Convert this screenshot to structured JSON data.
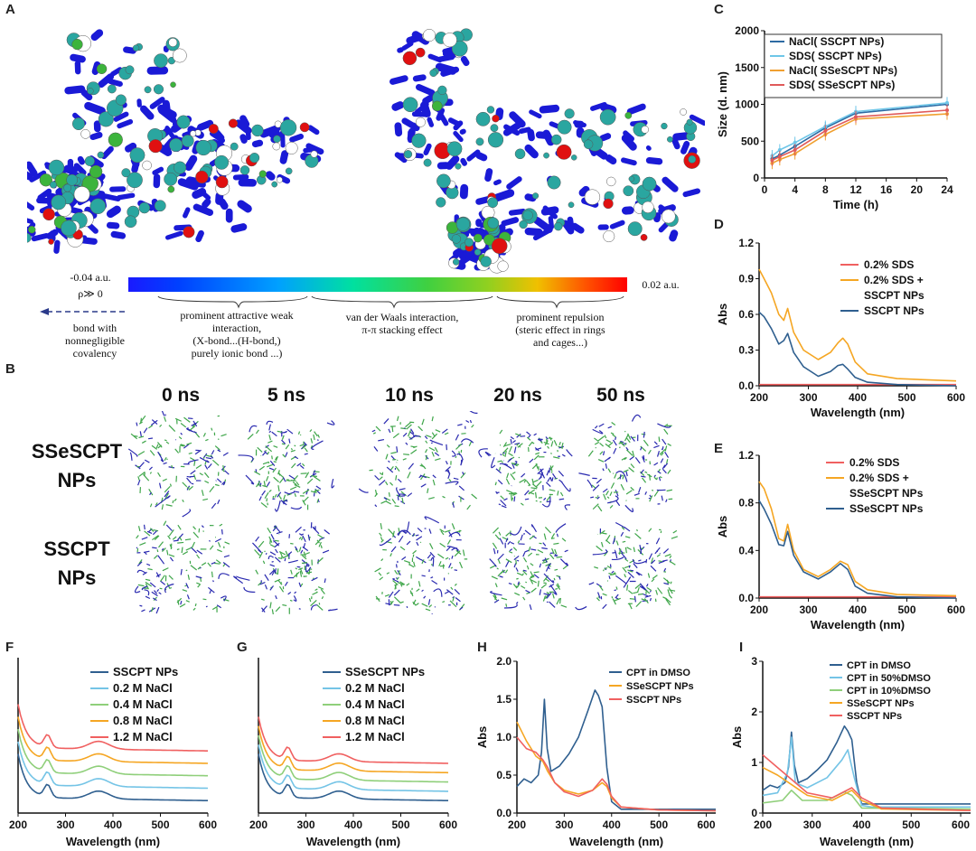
{
  "panels": {
    "A": "A",
    "B": "B",
    "C": "C",
    "D": "D",
    "E": "E",
    "F": "F",
    "G": "G",
    "H": "H",
    "I": "I"
  },
  "panel_a": {
    "colorbar_min": "-0.04 a.u.",
    "colorbar_rho": "ρ≫ 0",
    "colorbar_max": "0.02 a.u.",
    "bond_text": [
      "bond with",
      "nonnegligible",
      "covalency"
    ],
    "region1": [
      "prominent attractive weak",
      "interaction,",
      "(X-bond...(H-bond,)",
      "purely ionic bond ...)"
    ],
    "region2": [
      "van der Waals interaction,",
      "π-π stacking effect"
    ],
    "region3": [
      "prominent repulsion",
      "(steric effect in rings",
      "and cages...)"
    ],
    "colors": {
      "blue": "#1a1ad6",
      "cyan": "#2aa6a0",
      "green": "#3cb43c",
      "red": "#e01010"
    }
  },
  "panel_b": {
    "times": [
      "0 ns",
      "5 ns",
      "10 ns",
      "20 ns",
      "50 ns"
    ],
    "rows": [
      {
        "line1": "SSeSCPT",
        "line2": "NPs"
      },
      {
        "line1": "SSCPT",
        "line2": "NPs"
      }
    ]
  },
  "chart_data": [
    {
      "id": "C",
      "type": "line",
      "xlabel": "Time (h)",
      "ylabel": "Size (d. nm)",
      "xlim": [
        0,
        24
      ],
      "ylim": [
        0,
        2000
      ],
      "xticks": [
        0,
        4,
        8,
        12,
        16,
        20,
        24
      ],
      "yticks": [
        0,
        500,
        1000,
        1500,
        2000
      ],
      "x": [
        1,
        2,
        4,
        8,
        12,
        24
      ],
      "series": [
        {
          "name": "NaCl( SSCPT NPs)",
          "color": "#2d6aa3",
          "values": [
            260,
            310,
            430,
            680,
            880,
            1000
          ]
        },
        {
          "name": "SDS( SSCPT NPs)",
          "color": "#6ec6e8",
          "values": [
            300,
            380,
            480,
            700,
            900,
            1020
          ]
        },
        {
          "name": "NaCl( SSeSCPT NPs)",
          "color": "#f0a030",
          "values": [
            200,
            250,
            330,
            590,
            800,
            870
          ]
        },
        {
          "name": "SDS( SSeSCPT NPs)",
          "color": "#e05a5a",
          "values": [
            240,
            290,
            380,
            640,
            830,
            920
          ]
        }
      ]
    },
    {
      "id": "D",
      "type": "line",
      "xlabel": "Wavelength (nm)",
      "ylabel": "Abs",
      "xlim": [
        200,
        600
      ],
      "ylim": [
        0,
        1.2
      ],
      "xticks": [
        200,
        300,
        400,
        500,
        600
      ],
      "yticks": [
        "0.0",
        "0.3",
        "0.6",
        "0.9",
        "1.2"
      ],
      "series": [
        {
          "name": "0.2% SDS",
          "color": "#f06060",
          "x": [
            200,
            600
          ],
          "values": [
            0.01,
            0.01
          ]
        },
        {
          "name": "0.2% SDS + SSCPT NPs",
          "color": "#f5a623",
          "x": [
            200,
            210,
            225,
            240,
            250,
            258,
            270,
            290,
            320,
            345,
            360,
            370,
            380,
            395,
            420,
            480,
            600
          ],
          "values": [
            0.98,
            0.9,
            0.78,
            0.6,
            0.55,
            0.65,
            0.45,
            0.3,
            0.22,
            0.28,
            0.36,
            0.4,
            0.35,
            0.2,
            0.1,
            0.06,
            0.04
          ]
        },
        {
          "name": "SSCPT NPs",
          "color": "#2f5f8f",
          "x": [
            200,
            210,
            225,
            240,
            250,
            258,
            270,
            290,
            320,
            345,
            360,
            370,
            380,
            395,
            420,
            480,
            600
          ],
          "values": [
            0.62,
            0.58,
            0.48,
            0.35,
            0.38,
            0.44,
            0.28,
            0.16,
            0.08,
            0.12,
            0.17,
            0.18,
            0.14,
            0.07,
            0.03,
            0.01,
            0.0
          ]
        }
      ]
    },
    {
      "id": "E",
      "type": "line",
      "xlabel": "Wavelength (nm)",
      "ylabel": "Abs",
      "xlim": [
        200,
        600
      ],
      "ylim": [
        0,
        1.2
      ],
      "xticks": [
        200,
        300,
        400,
        500,
        600
      ],
      "yticks": [
        "0.0",
        "0.4",
        "0.8",
        "1.2"
      ],
      "series": [
        {
          "name": "0.2% SDS",
          "color": "#f06060",
          "x": [
            200,
            600
          ],
          "values": [
            0.01,
            0.01
          ]
        },
        {
          "name": "0.2% SDS + SSeSCPT NPs",
          "color": "#f5a623",
          "x": [
            200,
            210,
            225,
            240,
            250,
            258,
            270,
            290,
            320,
            345,
            365,
            380,
            395,
            420,
            480,
            600
          ],
          "values": [
            0.98,
            0.92,
            0.75,
            0.5,
            0.48,
            0.62,
            0.4,
            0.24,
            0.18,
            0.24,
            0.31,
            0.28,
            0.14,
            0.07,
            0.03,
            0.02
          ]
        },
        {
          "name": "SSeSCPT NPs",
          "color": "#2f5f8f",
          "x": [
            200,
            210,
            225,
            240,
            250,
            258,
            270,
            290,
            320,
            345,
            365,
            380,
            395,
            420,
            480,
            600
          ],
          "values": [
            0.82,
            0.75,
            0.62,
            0.45,
            0.44,
            0.56,
            0.36,
            0.22,
            0.16,
            0.22,
            0.29,
            0.24,
            0.1,
            0.04,
            0.01,
            0.0
          ]
        }
      ]
    },
    {
      "id": "F",
      "type": "line",
      "xlabel": "Wavelength (nm)",
      "ylabel": "",
      "xlim": [
        200,
        600
      ],
      "ylim": [
        0,
        1
      ],
      "xticks": [
        200,
        300,
        400,
        500,
        600
      ],
      "series": [
        {
          "name": "SSCPT NPs",
          "color": "#2f5f8f",
          "offset": 0.0
        },
        {
          "name": "0.2 M NaCl",
          "color": "#74c4e6",
          "offset": 0.08
        },
        {
          "name": "0.4 M NaCl",
          "color": "#8fcf7a",
          "offset": 0.16
        },
        {
          "name": "0.8 M NaCl",
          "color": "#f5a623",
          "offset": 0.24
        },
        {
          "name": "1.2 M NaCl",
          "color": "#f06060",
          "offset": 0.32
        }
      ]
    },
    {
      "id": "G",
      "type": "line",
      "xlabel": "Wavelength (nm)",
      "ylabel": "",
      "xlim": [
        200,
        600
      ],
      "ylim": [
        0,
        1
      ],
      "xticks": [
        200,
        300,
        400,
        500,
        600
      ],
      "series": [
        {
          "name": "SSeSCPT NPs",
          "color": "#2f5f8f",
          "offset": 0.0
        },
        {
          "name": "0.2 M NaCl",
          "color": "#74c4e6",
          "offset": 0.06
        },
        {
          "name": "0.4 M NaCl",
          "color": "#8fcf7a",
          "offset": 0.12
        },
        {
          "name": "0.8 M NaCl",
          "color": "#f5a623",
          "offset": 0.18
        },
        {
          "name": "1.2 M NaCl",
          "color": "#f06060",
          "offset": 0.24
        }
      ]
    },
    {
      "id": "H",
      "type": "line",
      "xlabel": "Wavelength (nm)",
      "ylabel": "Abs",
      "xlim": [
        200,
        620
      ],
      "ylim": [
        0,
        2.0
      ],
      "xticks": [
        200,
        300,
        400,
        500,
        600
      ],
      "yticks": [
        "0.0",
        "0.5",
        "1.0",
        "1.5",
        "2.0"
      ],
      "series": [
        {
          "name": "CPT in DMSO",
          "color": "#2f5f8f",
          "x": [
            200,
            215,
            230,
            245,
            252,
            258,
            264,
            272,
            290,
            310,
            330,
            350,
            365,
            372,
            380,
            390,
            400,
            420,
            620
          ],
          "values": [
            0.35,
            0.45,
            0.4,
            0.5,
            0.8,
            1.5,
            0.85,
            0.55,
            0.62,
            0.78,
            1.0,
            1.35,
            1.62,
            1.55,
            1.4,
            0.6,
            0.15,
            0.05,
            0.05
          ]
        },
        {
          "name": "SSeSCPT NPs",
          "color": "#f5a623",
          "x": [
            200,
            220,
            240,
            255,
            265,
            280,
            300,
            330,
            360,
            380,
            390,
            400,
            420,
            500,
            620
          ],
          "values": [
            1.2,
            0.95,
            0.75,
            0.68,
            0.55,
            0.4,
            0.3,
            0.25,
            0.3,
            0.4,
            0.35,
            0.2,
            0.08,
            0.04,
            0.03
          ]
        },
        {
          "name": "SSCPT NPs",
          "color": "#f06060",
          "x": [
            200,
            220,
            240,
            255,
            265,
            280,
            300,
            330,
            360,
            380,
            390,
            400,
            420,
            500,
            620
          ],
          "values": [
            1.0,
            0.85,
            0.8,
            0.7,
            0.6,
            0.4,
            0.28,
            0.22,
            0.3,
            0.45,
            0.38,
            0.22,
            0.08,
            0.04,
            0.03
          ]
        }
      ]
    },
    {
      "id": "I",
      "type": "line",
      "xlabel": "Wavelength (nm)",
      "ylabel": "Abs",
      "xlim": [
        200,
        620
      ],
      "ylim": [
        0,
        3
      ],
      "xticks": [
        200,
        300,
        400,
        500,
        600
      ],
      "yticks": [
        "0",
        "1",
        "2",
        "3"
      ],
      "series": [
        {
          "name": "CPT in DMSO",
          "color": "#2f5f8f",
          "x": [
            200,
            215,
            230,
            245,
            252,
            258,
            264,
            272,
            290,
            310,
            330,
            350,
            365,
            372,
            380,
            390,
            400,
            420,
            620
          ],
          "values": [
            0.45,
            0.55,
            0.5,
            0.6,
            0.9,
            1.6,
            0.95,
            0.6,
            0.68,
            0.85,
            1.05,
            1.4,
            1.72,
            1.62,
            1.45,
            0.6,
            0.18,
            0.18,
            0.18
          ]
        },
        {
          "name": "CPT in 50%DMSO",
          "color": "#74c4e6",
          "x": [
            200,
            230,
            250,
            258,
            266,
            290,
            330,
            360,
            372,
            385,
            400,
            420,
            620
          ],
          "values": [
            0.35,
            0.4,
            0.8,
            1.5,
            0.6,
            0.5,
            0.7,
            1.05,
            1.25,
            0.7,
            0.15,
            0.12,
            0.12
          ]
        },
        {
          "name": "CPT in 10%DMSO",
          "color": "#8fcf7a",
          "x": [
            200,
            240,
            258,
            280,
            330,
            365,
            380,
            400,
            620
          ],
          "values": [
            0.2,
            0.25,
            0.45,
            0.25,
            0.25,
            0.42,
            0.35,
            0.1,
            0.08
          ]
        },
        {
          "name": "SSeSCPT NPs",
          "color": "#f5a623",
          "x": [
            200,
            230,
            260,
            290,
            340,
            380,
            400,
            440,
            620
          ],
          "values": [
            0.9,
            0.75,
            0.55,
            0.35,
            0.25,
            0.45,
            0.25,
            0.08,
            0.05
          ]
        },
        {
          "name": "SSCPT NPs",
          "color": "#f06060",
          "x": [
            200,
            230,
            260,
            290,
            340,
            380,
            400,
            440,
            620
          ],
          "values": [
            1.15,
            0.9,
            0.65,
            0.4,
            0.3,
            0.5,
            0.3,
            0.1,
            0.05
          ]
        }
      ]
    }
  ]
}
